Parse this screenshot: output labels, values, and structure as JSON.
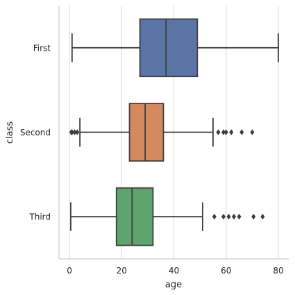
{
  "chart_data": {
    "type": "box",
    "orientation": "horizontal",
    "xlabel": "age",
    "ylabel": "class",
    "xlim": [
      -4,
      84
    ],
    "xticks": [
      0,
      20,
      40,
      60,
      80
    ],
    "grid": "vertical",
    "categories": [
      "First",
      "Second",
      "Third"
    ],
    "boxes": [
      {
        "category": "First",
        "color": "#5a74a6",
        "whisker_low": 1,
        "q1": 27,
        "median": 37,
        "q3": 49,
        "whisker_high": 80,
        "outliers": []
      },
      {
        "category": "Second",
        "color": "#d48a5e",
        "whisker_low": 4,
        "q1": 23,
        "median": 29,
        "q3": 36,
        "whisker_high": 55,
        "outliers": [
          0.7,
          1,
          2,
          3,
          57,
          59,
          60,
          62,
          66,
          70
        ]
      },
      {
        "category": "Third",
        "color": "#5fa46e",
        "whisker_low": 0.5,
        "q1": 18,
        "median": 24,
        "q3": 32,
        "whisker_high": 51,
        "outliers": [
          55.5,
          59,
          61,
          63,
          65,
          70.5,
          74
        ]
      }
    ]
  }
}
